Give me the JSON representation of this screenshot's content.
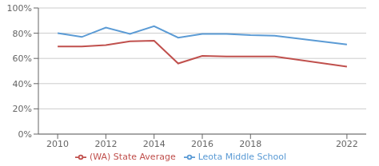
{
  "chart_data": {
    "type": "line",
    "x": [
      2010,
      2011,
      2012,
      2013,
      2014,
      2015,
      2016,
      2017,
      2018,
      2019,
      2022
    ],
    "series": [
      {
        "name": "Leota Middle School",
        "color": "#5b9bd5",
        "values": [
          0.8,
          0.77,
          0.845,
          0.795,
          0.855,
          0.765,
          0.795,
          0.795,
          0.785,
          0.78,
          0.71
        ]
      },
      {
        "name": "(WA) State Average",
        "color": "#c0504d",
        "values": [
          0.695,
          0.695,
          0.705,
          0.735,
          0.74,
          0.56,
          0.62,
          0.615,
          0.615,
          0.615,
          0.535
        ]
      }
    ],
    "xlim": [
      2009.2,
      2022.8
    ],
    "xticks": [
      2010,
      2012,
      2014,
      2016,
      2018,
      2022
    ],
    "ylim": [
      0,
      1.0
    ],
    "yticks": [
      {
        "value": 0.0,
        "label": "0%"
      },
      {
        "value": 0.2,
        "label": "20%"
      },
      {
        "value": 0.4,
        "label": "40%"
      },
      {
        "value": 0.6,
        "label": "60%"
      },
      {
        "value": 0.8,
        "label": "80%"
      },
      {
        "value": 1.0,
        "label": "100%"
      }
    ],
    "grid": true,
    "legend": "bottom"
  }
}
